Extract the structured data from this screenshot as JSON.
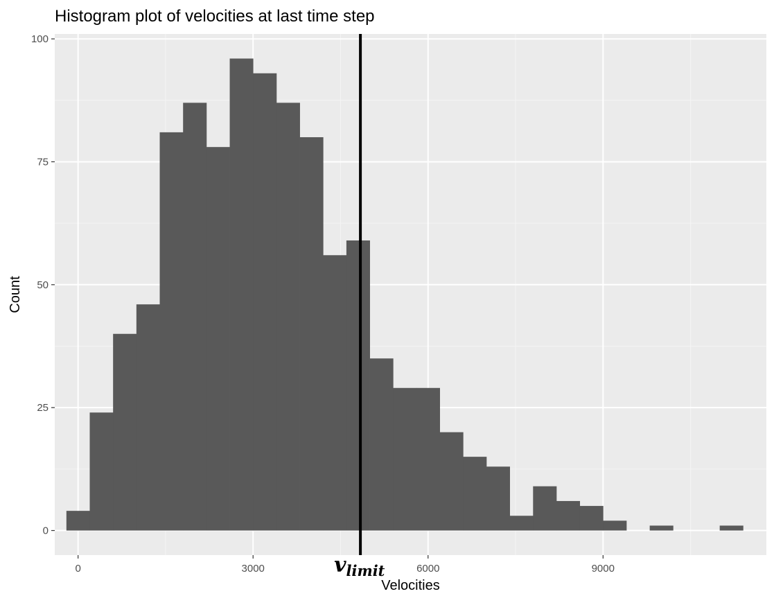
{
  "chart_data": {
    "type": "histogram",
    "title": "Histogram plot of velocities at last time step",
    "xlabel": "Velocities",
    "ylabel": "Count",
    "xlim": [
      -400,
      11800
    ],
    "ylim": [
      -5,
      101
    ],
    "x_ticks": [
      0,
      3000,
      6000,
      9000
    ],
    "x_tick_labels": [
      "0",
      "3000",
      "6000",
      "9000"
    ],
    "y_ticks": [
      0,
      25,
      50,
      75,
      100
    ],
    "y_tick_labels": [
      "0",
      "25",
      "50",
      "75",
      "100"
    ],
    "bin_width": 400,
    "bins": [
      {
        "start": -200,
        "end": 200,
        "count": 4
      },
      {
        "start": 200,
        "end": 600,
        "count": 24
      },
      {
        "start": 600,
        "end": 1000,
        "count": 40
      },
      {
        "start": 1000,
        "end": 1400,
        "count": 46
      },
      {
        "start": 1400,
        "end": 1800,
        "count": 81
      },
      {
        "start": 1800,
        "end": 2200,
        "count": 87
      },
      {
        "start": 2200,
        "end": 2600,
        "count": 78
      },
      {
        "start": 2600,
        "end": 3000,
        "count": 96
      },
      {
        "start": 3000,
        "end": 3400,
        "count": 93
      },
      {
        "start": 3400,
        "end": 3800,
        "count": 87
      },
      {
        "start": 3800,
        "end": 4200,
        "count": 80
      },
      {
        "start": 4200,
        "end": 4600,
        "count": 56
      },
      {
        "start": 4600,
        "end": 5000,
        "count": 59
      },
      {
        "start": 5000,
        "end": 5400,
        "count": 35
      },
      {
        "start": 5400,
        "end": 5800,
        "count": 29
      },
      {
        "start": 5800,
        "end": 6200,
        "count": 29
      },
      {
        "start": 6200,
        "end": 6600,
        "count": 20
      },
      {
        "start": 6600,
        "end": 7000,
        "count": 15
      },
      {
        "start": 7000,
        "end": 7400,
        "count": 13
      },
      {
        "start": 7400,
        "end": 7800,
        "count": 3
      },
      {
        "start": 7800,
        "end": 8200,
        "count": 9
      },
      {
        "start": 8200,
        "end": 8600,
        "count": 6
      },
      {
        "start": 8600,
        "end": 9000,
        "count": 5
      },
      {
        "start": 9000,
        "end": 9400,
        "count": 2
      },
      {
        "start": 9400,
        "end": 9800,
        "count": 0
      },
      {
        "start": 9800,
        "end": 10200,
        "count": 1
      },
      {
        "start": 10200,
        "end": 10600,
        "count": 0
      },
      {
        "start": 10600,
        "end": 11000,
        "count": 0
      },
      {
        "start": 11000,
        "end": 11400,
        "count": 1
      }
    ],
    "vertical_line": {
      "x": 4840,
      "label_base": "v",
      "label_sub": "limit"
    },
    "grid": true,
    "colors": {
      "panel_background": "#ebebeb",
      "grid_major": "#ffffff",
      "grid_minor": "#f4f4f4",
      "bar_fill": "#595959",
      "vline": "#000000",
      "tick_text": "#4d4d4d",
      "title_text": "#000000"
    }
  }
}
